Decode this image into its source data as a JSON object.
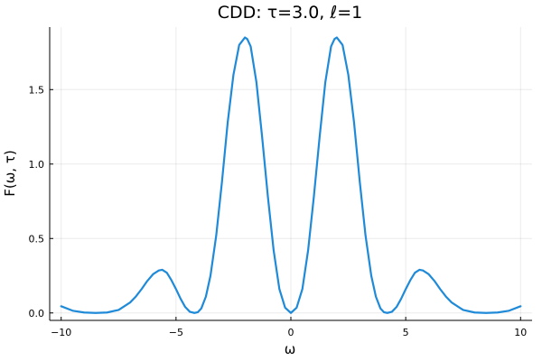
{
  "chart_data": {
    "type": "line",
    "title": "CDD: τ=3.0, ℓ=1",
    "xlabel": "ω",
    "ylabel": "F(ω, τ)",
    "xlim": [
      -10.5,
      10.5
    ],
    "ylim": [
      -0.05,
      1.92
    ],
    "xticks": [
      -10,
      -5,
      0,
      5,
      10
    ],
    "xtick_labels": [
      "−10",
      "−5",
      "0",
      "5",
      "10"
    ],
    "yticks": [
      0.0,
      0.5,
      1.0,
      1.5
    ],
    "ytick_labels": [
      "0.0",
      "0.5",
      "1.0",
      "1.5"
    ],
    "grid": true,
    "legend": "none",
    "colors": {
      "series": "#1f8ad8"
    },
    "series": [
      {
        "x": [
          -10,
          -9.5,
          -9,
          -8.5,
          -8,
          -7.5,
          -7,
          -6.75,
          -6.5,
          -6.25,
          -6,
          -5.75,
          -5.6,
          -5.4,
          -5.2,
          -5,
          -4.8,
          -4.6,
          -4.4,
          -4.2,
          -4.05,
          -3.9,
          -3.7,
          -3.5,
          -3.25,
          -3,
          -2.75,
          -2.5,
          -2.25,
          -2,
          -1.9,
          -1.75,
          -1.5,
          -1.25,
          -1,
          -0.75,
          -0.5,
          -0.25,
          0,
          0.25,
          0.5,
          0.75,
          1,
          1.25,
          1.5,
          1.75,
          1.9,
          2,
          2.25,
          2.5,
          2.75,
          3,
          3.25,
          3.5,
          3.7,
          3.9,
          4.05,
          4.2,
          4.4,
          4.6,
          4.8,
          5,
          5.2,
          5.4,
          5.6,
          5.75,
          6,
          6.25,
          6.5,
          6.75,
          7,
          7.5,
          8,
          8.5,
          9,
          9.5,
          10
        ],
        "y": [
          0.045,
          0.015,
          0.003,
          0.0,
          0.003,
          0.02,
          0.07,
          0.11,
          0.16,
          0.215,
          0.26,
          0.285,
          0.29,
          0.27,
          0.22,
          0.16,
          0.095,
          0.04,
          0.008,
          0.0,
          0.005,
          0.03,
          0.11,
          0.25,
          0.52,
          0.88,
          1.28,
          1.6,
          1.8,
          1.85,
          1.84,
          1.79,
          1.55,
          1.18,
          0.78,
          0.42,
          0.16,
          0.035,
          0.0,
          0.035,
          0.16,
          0.42,
          0.78,
          1.18,
          1.55,
          1.79,
          1.84,
          1.85,
          1.8,
          1.6,
          1.28,
          0.88,
          0.52,
          0.25,
          0.11,
          0.03,
          0.005,
          0.0,
          0.008,
          0.04,
          0.095,
          0.16,
          0.22,
          0.27,
          0.29,
          0.285,
          0.26,
          0.215,
          0.16,
          0.11,
          0.07,
          0.02,
          0.003,
          0.0,
          0.003,
          0.015,
          0.045
        ]
      }
    ]
  }
}
